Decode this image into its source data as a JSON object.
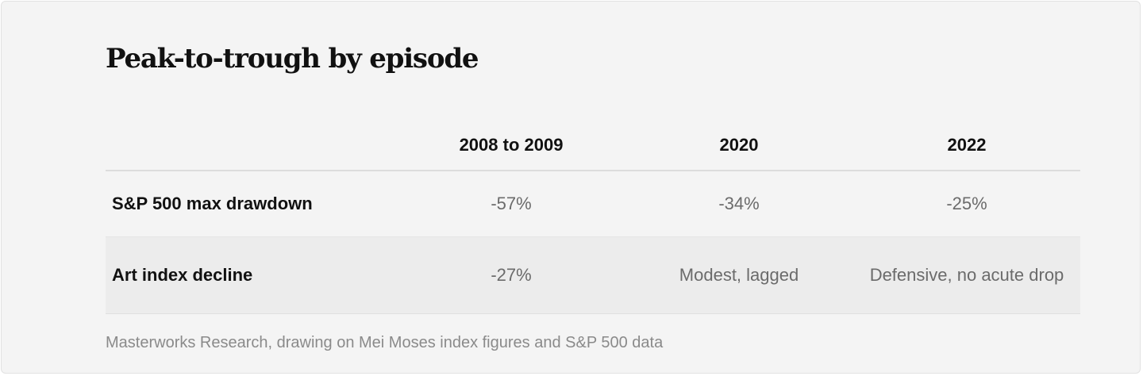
{
  "title": "Peak-to-trough by episode",
  "table": {
    "columns": [
      "",
      "2008 to 2009",
      "2020",
      "2022"
    ],
    "rows": [
      {
        "label": "S&P 500 max drawdown",
        "values": [
          "-57%",
          "-34%",
          "-25%"
        ]
      },
      {
        "label": "Art index decline",
        "values": [
          "-27%",
          "Modest, lagged",
          "Defensive, no acute drop"
        ]
      }
    ]
  },
  "source": "Masterworks Research, drawing on Mei Moses index figures and S&P 500 data"
}
